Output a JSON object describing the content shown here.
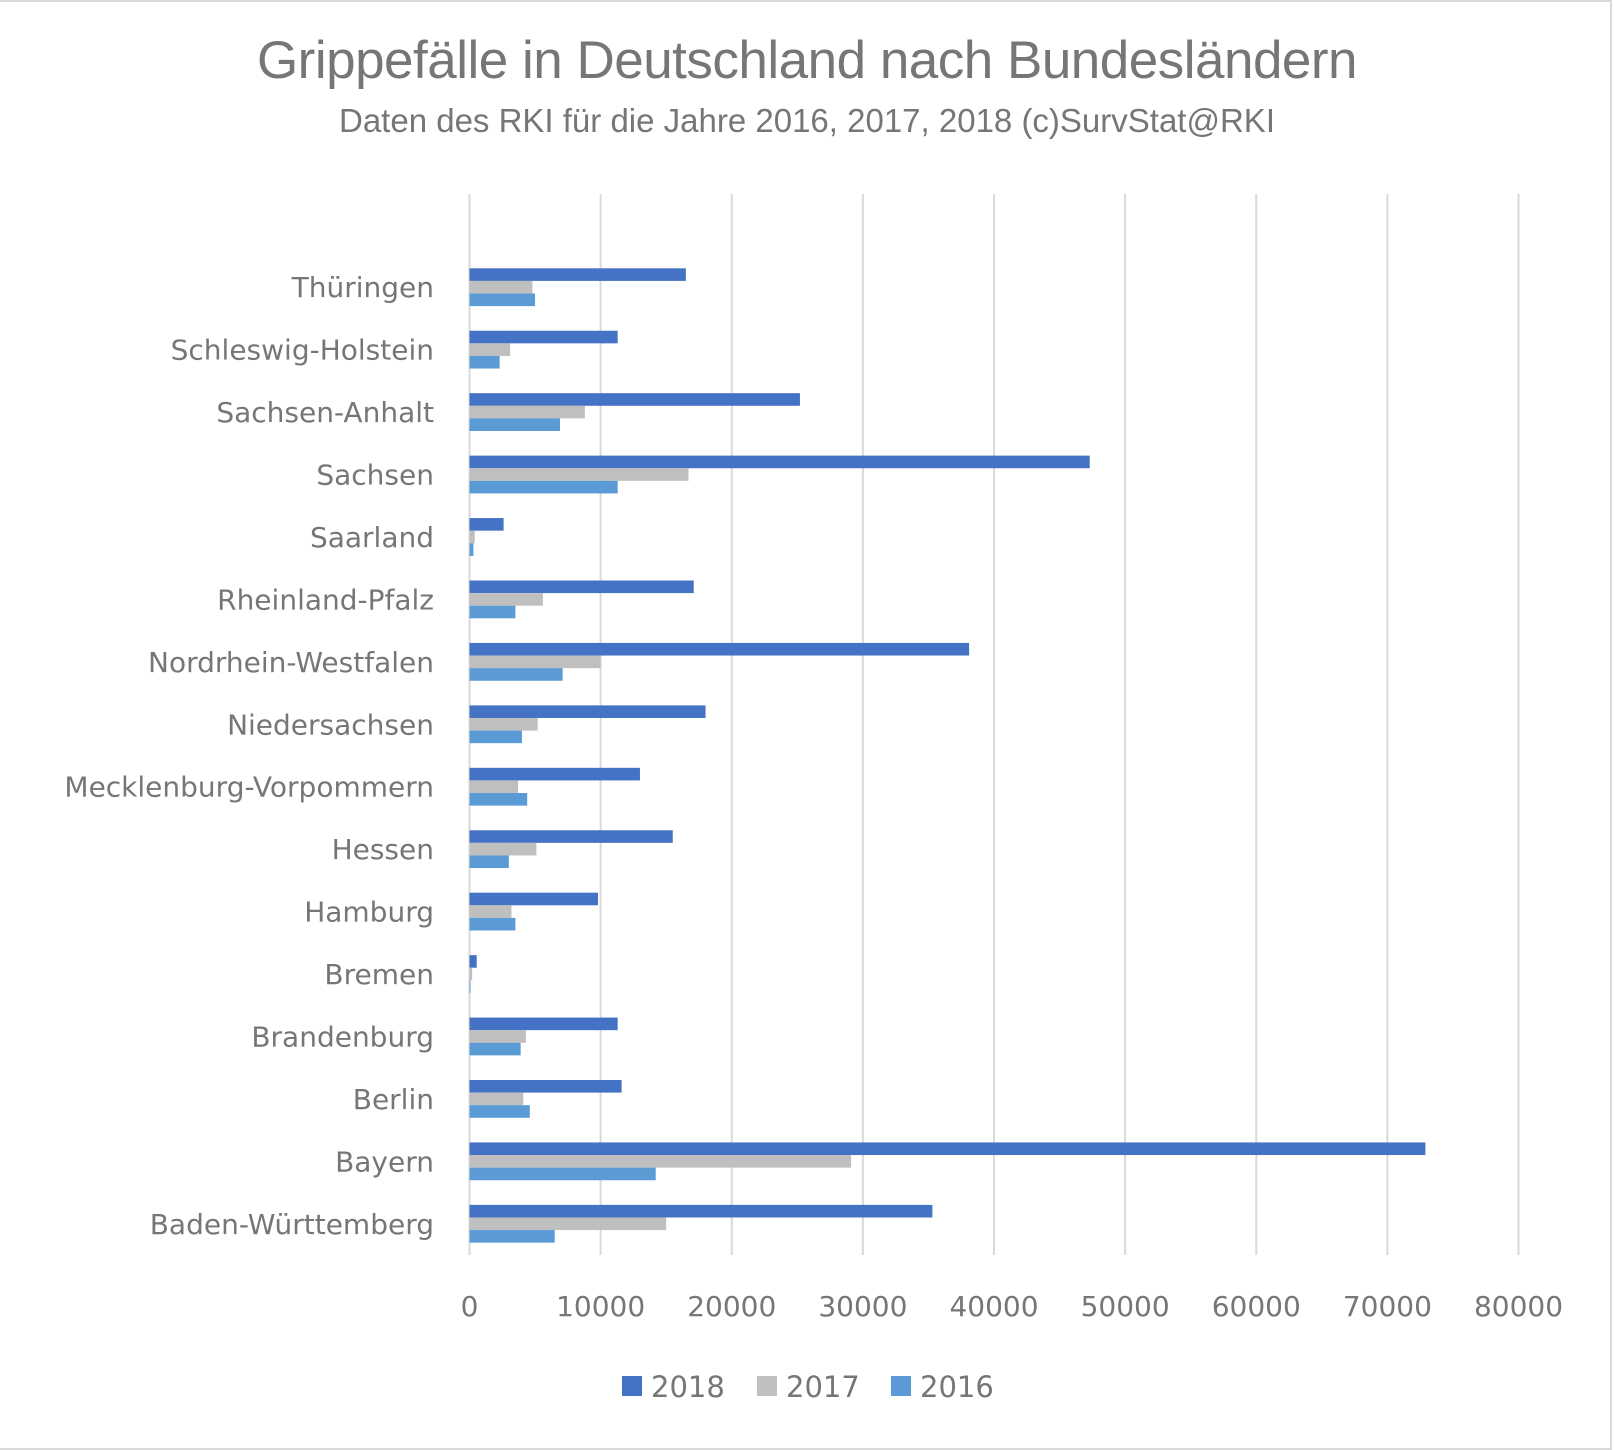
{
  "chart_data": {
    "type": "bar",
    "orientation": "horizontal",
    "title": "Grippefälle in Deutschland nach Bundesländern",
    "subtitle": "Daten des RKI für die Jahre 2016, 2017, 2018 (c)SurvStat@RKI",
    "xlabel": "",
    "ylabel": "",
    "xlim": [
      0,
      80000
    ],
    "x_ticks": [
      0,
      10000,
      20000,
      30000,
      40000,
      50000,
      60000,
      70000,
      80000
    ],
    "x_tick_labels": [
      "0",
      "10000",
      "20000",
      "30000",
      "40000",
      "50000",
      "60000",
      "70000",
      "80000"
    ],
    "grid": "vertical",
    "legend_position": "bottom",
    "categories": [
      "Thüringen",
      "Schleswig-Holstein",
      "Sachsen-Anhalt",
      "Sachsen",
      "Saarland",
      "Rheinland-Pfalz",
      "Nordrhein-Westfalen",
      "Niedersachsen",
      "Mecklenburg-Vorpommern",
      "Hessen",
      "Hamburg",
      "Bremen",
      "Brandenburg",
      "Berlin",
      "Bayern",
      "Baden-Württemberg"
    ],
    "series": [
      {
        "name": "2018",
        "color": "#4472C4",
        "values": [
          16500,
          11300,
          25200,
          47300,
          2600,
          17100,
          38100,
          18000,
          13000,
          15500,
          9800,
          550,
          11300,
          11600,
          72900,
          35300
        ]
      },
      {
        "name": "2017",
        "color": "#BFBFBF",
        "values": [
          4800,
          3100,
          8800,
          16700,
          400,
          5600,
          10000,
          5200,
          3700,
          5100,
          3200,
          200,
          4300,
          4100,
          29100,
          15000
        ]
      },
      {
        "name": "2016",
        "color": "#5B9BD5",
        "values": [
          5000,
          2300,
          6900,
          11300,
          300,
          3500,
          7100,
          4000,
          4400,
          3000,
          3500,
          50,
          3900,
          4600,
          14200,
          6500
        ]
      }
    ]
  },
  "legend": [
    {
      "label": "2018",
      "color": "#4472C4"
    },
    {
      "label": "2017",
      "color": "#BFBFBF"
    },
    {
      "label": "2016",
      "color": "#5B9BD5"
    }
  ]
}
